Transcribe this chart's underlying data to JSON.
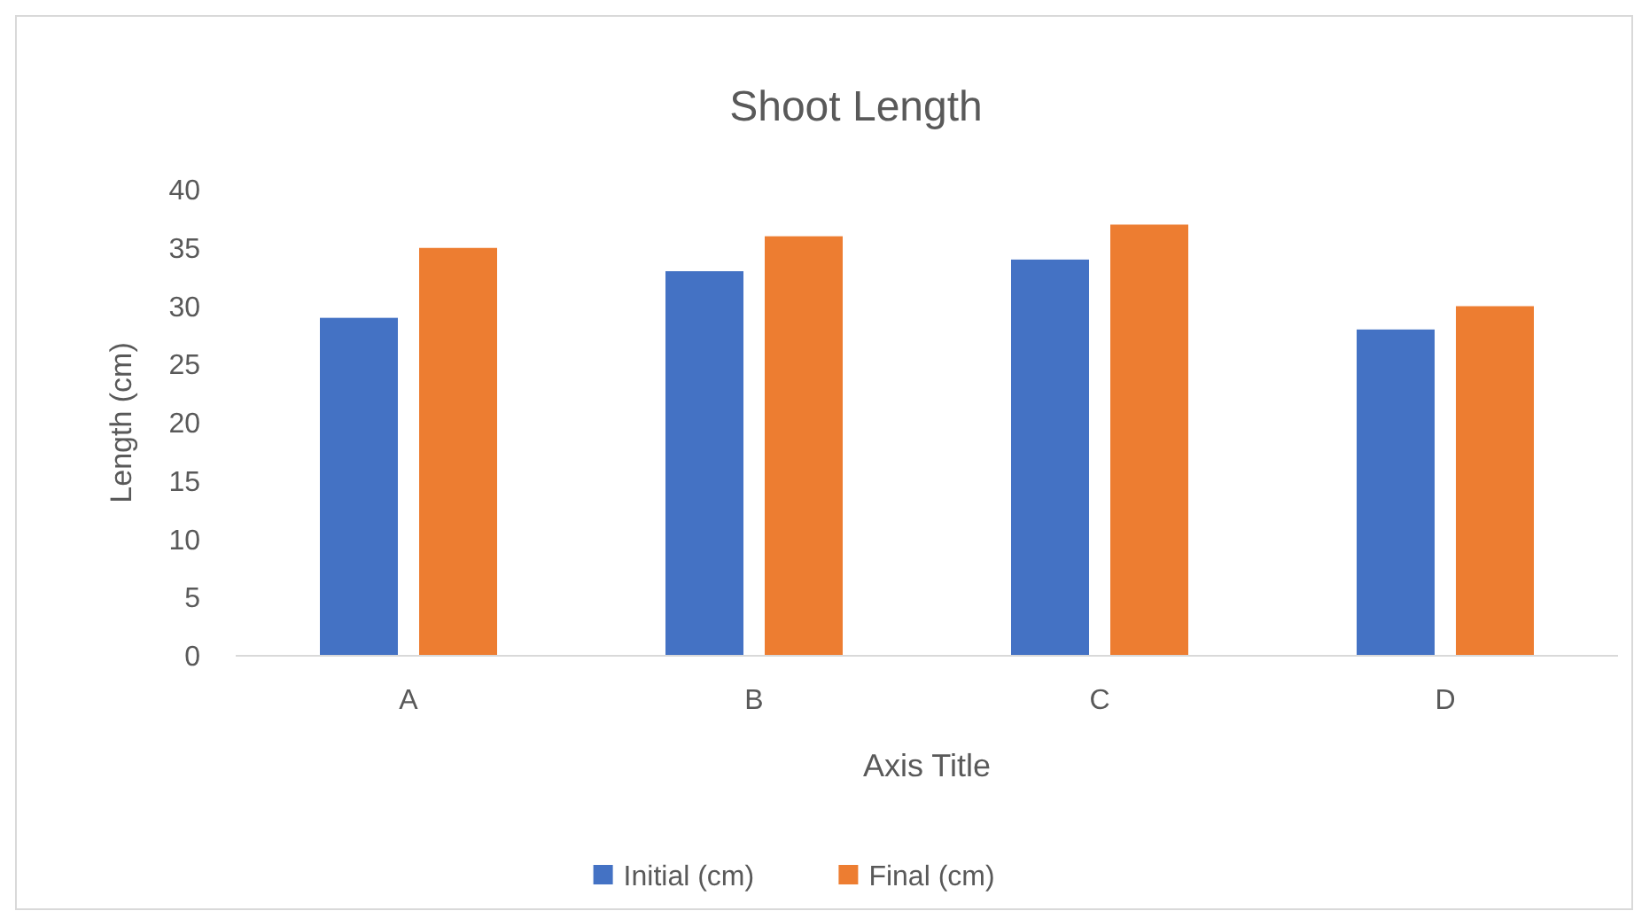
{
  "chart_data": {
    "type": "bar",
    "title": "Shoot Length",
    "xlabel": "Axis Title",
    "ylabel": "Length (cm)",
    "categories": [
      "A",
      "B",
      "C",
      "D"
    ],
    "series": [
      {
        "name": "Initial (cm)",
        "color": "#4472c4",
        "values": [
          29,
          33,
          34,
          28
        ]
      },
      {
        "name": "Final (cm)",
        "color": "#ed7d31",
        "values": [
          35,
          36,
          37,
          30
        ]
      }
    ],
    "ylim": [
      0,
      40
    ],
    "yticks": [
      0,
      5,
      10,
      15,
      20,
      25,
      30,
      35,
      40
    ],
    "grid": false,
    "legend": "bottom"
  }
}
